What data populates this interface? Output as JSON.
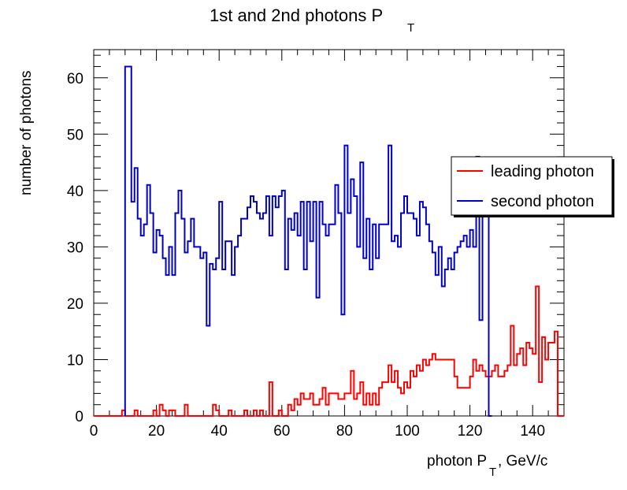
{
  "chart_data": {
    "type": "histogram",
    "title_main": "1st and 2nd photons P",
    "title_sub": "T",
    "xlabel_main": "photon P",
    "xlabel_sub": "T",
    "xlabel_rest": ", GeV/c",
    "ylabel": "number of photons",
    "xlim": [
      0,
      150
    ],
    "ylim": [
      0,
      65
    ],
    "bin_width": 1,
    "x_ticks": [
      "0",
      "20",
      "40",
      "60",
      "80",
      "100",
      "120",
      "140"
    ],
    "y_ticks": [
      "0",
      "10",
      "20",
      "30",
      "40",
      "50",
      "60"
    ],
    "grid": false,
    "legend_position": "right, upper-middle",
    "series": [
      {
        "name": "leading photon",
        "color": "#ff0000",
        "bin_start": 0,
        "values": [
          0,
          0,
          0,
          0,
          0,
          0,
          0,
          0,
          0,
          1,
          0,
          0,
          0,
          1,
          0,
          0,
          0,
          0,
          0,
          1,
          0,
          2,
          1,
          0,
          1,
          1,
          0,
          0,
          0,
          2,
          0,
          0,
          0,
          0,
          0,
          0,
          0,
          0,
          2,
          1,
          0,
          0,
          0,
          1,
          0,
          0,
          0,
          0,
          1,
          0,
          0,
          1,
          0,
          1,
          0,
          0,
          6,
          0,
          0,
          1,
          0,
          0,
          2,
          1,
          3,
          2,
          4,
          3,
          3,
          4,
          2,
          2,
          3,
          5,
          2,
          4,
          4,
          4,
          3,
          3,
          4,
          4,
          8,
          3,
          4,
          6,
          2,
          4,
          2,
          4,
          2,
          5,
          6,
          6,
          9,
          6,
          8,
          5,
          4,
          6,
          5,
          8,
          7,
          9,
          8,
          10,
          9,
          10,
          11,
          10,
          10,
          10,
          10,
          10,
          10,
          7,
          5,
          5,
          5,
          5,
          7,
          10,
          8,
          9,
          8,
          7,
          7,
          8,
          9,
          7,
          7,
          8,
          9,
          16,
          9,
          11,
          12,
          9,
          13,
          12,
          11,
          23,
          6,
          14,
          10,
          13,
          13,
          15,
          0,
          0
        ]
      },
      {
        "name": "second photon",
        "color": "#0000cc",
        "bin_start": 10,
        "values": [
          62,
          62,
          38,
          44,
          35,
          32,
          34,
          41,
          36,
          29,
          33,
          32,
          28,
          25,
          30,
          25,
          36,
          40,
          35,
          29,
          31,
          35,
          30,
          30,
          28,
          29,
          16,
          27,
          26,
          28,
          38,
          26,
          31,
          31,
          25,
          30,
          32,
          35,
          35,
          37,
          39,
          38,
          36,
          35,
          36,
          39,
          32,
          39,
          37,
          39,
          40,
          26,
          35,
          33,
          36,
          32,
          38,
          26,
          38,
          31,
          38,
          21,
          38,
          34,
          32,
          34,
          34,
          41,
          36,
          18,
          48,
          36,
          42,
          39,
          30,
          45,
          28,
          35,
          26,
          34,
          28,
          34,
          34,
          34,
          48,
          31,
          32,
          30,
          36,
          39,
          36,
          36,
          35,
          32,
          38,
          37,
          34,
          31,
          29,
          25,
          30,
          23,
          26,
          28,
          26,
          29,
          30,
          31,
          32,
          30,
          33,
          30,
          46,
          17,
          37,
          37,
          0
        ]
      }
    ]
  }
}
